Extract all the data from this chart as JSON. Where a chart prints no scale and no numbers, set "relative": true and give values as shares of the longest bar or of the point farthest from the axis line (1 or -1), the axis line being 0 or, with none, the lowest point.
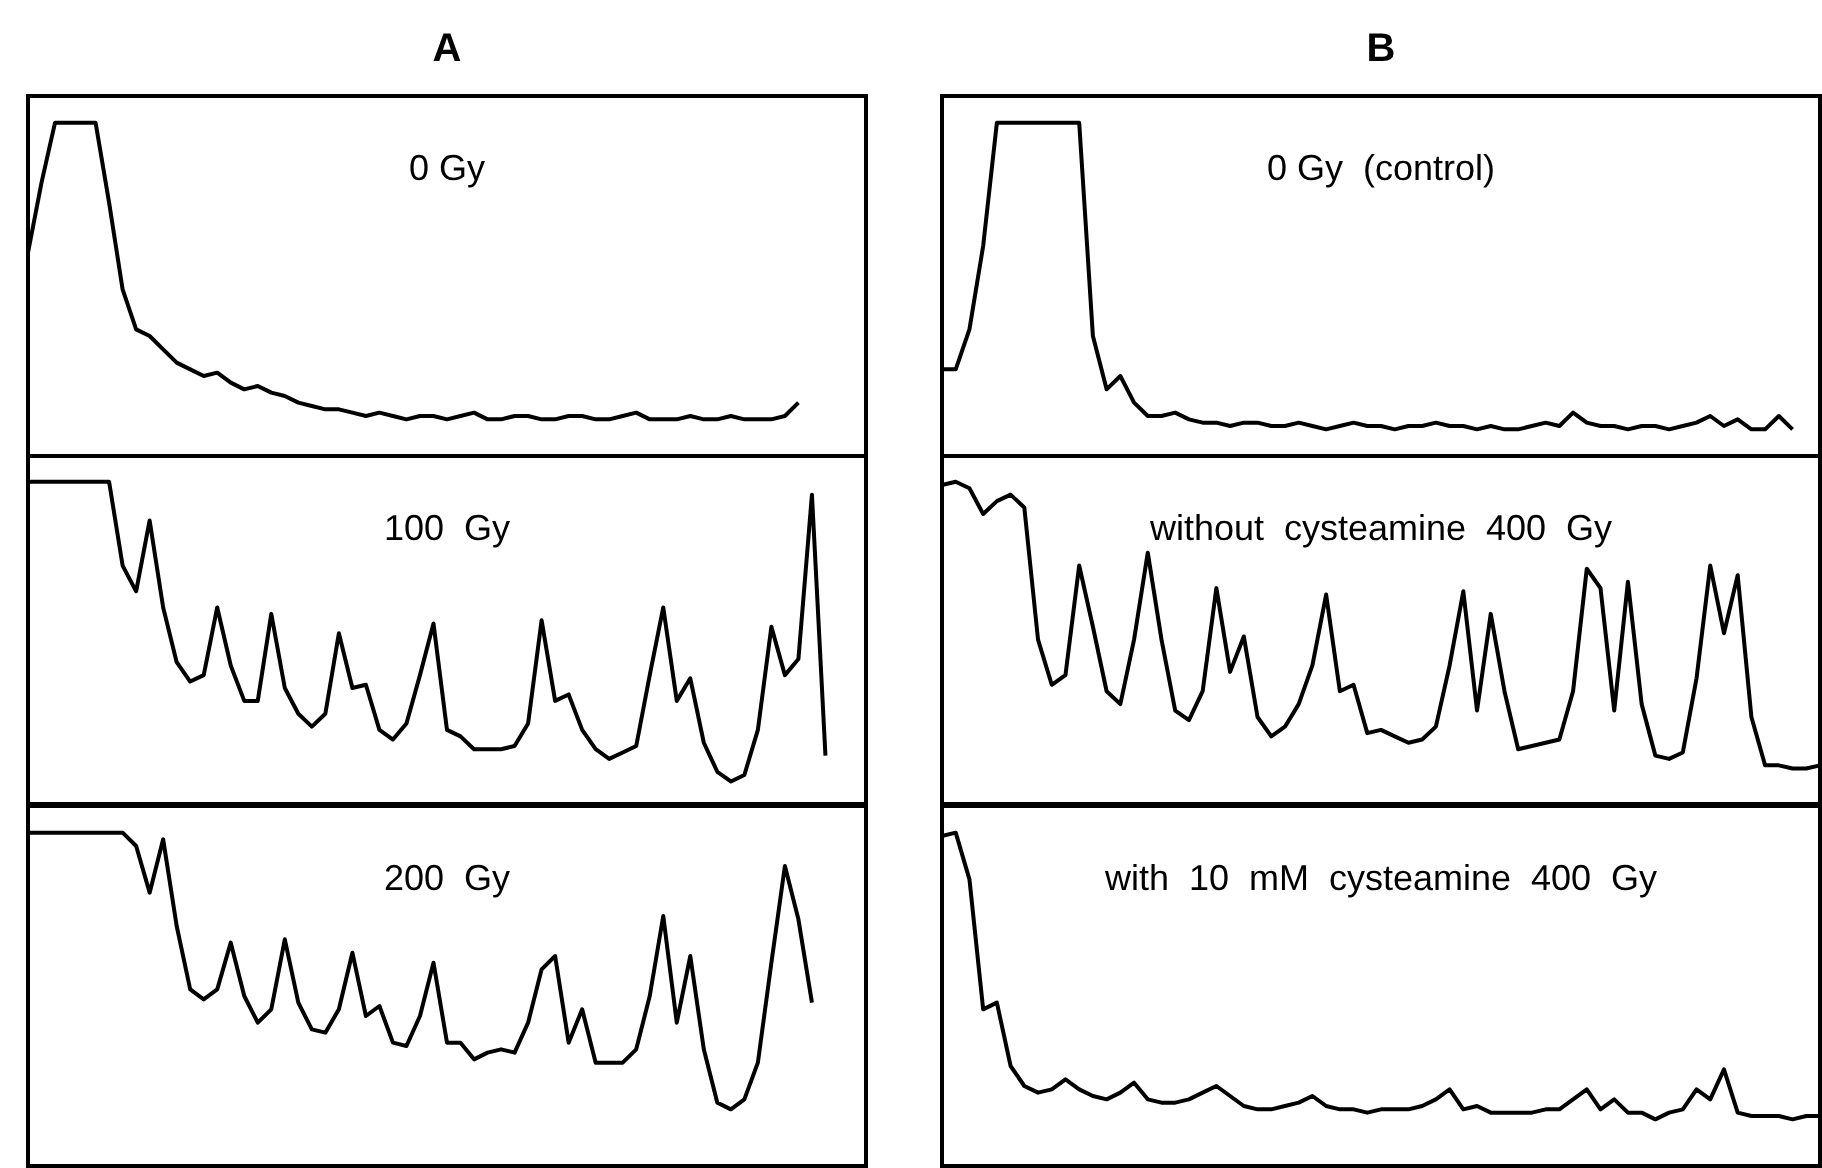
{
  "chart_data": [
    {
      "type": "line",
      "title": "A",
      "annotations": [
        "0 Gy"
      ],
      "relative": true,
      "color": "#000000",
      "categories": [
        null,
        null,
        null,
        null,
        null,
        null,
        null,
        null,
        null,
        null,
        null,
        null,
        null,
        null,
        null,
        null,
        null,
        null,
        null,
        null,
        null,
        null,
        null,
        null,
        null,
        null,
        null,
        null,
        null,
        null,
        null,
        null,
        null,
        null,
        null,
        null,
        null,
        null,
        null,
        null,
        null,
        null,
        null,
        null,
        null,
        null,
        null,
        null,
        null,
        null,
        null,
        null,
        null,
        null,
        null,
        null,
        null,
        null,
        null,
        null,
        null,
        null,
        null
      ],
      "values": [
        0.61,
        0.82,
        1,
        1,
        1,
        1,
        0.76,
        0.5,
        0.38,
        0.36,
        0.32,
        0.28,
        0.26,
        0.24,
        0.25,
        0.22,
        0.2,
        0.21,
        0.19,
        0.18,
        0.16,
        0.15,
        0.14,
        0.14,
        0.13,
        0.12,
        0.13,
        0.12,
        0.11,
        0.12,
        0.12,
        0.11,
        0.12,
        0.13,
        0.11,
        0.11,
        0.12,
        0.12,
        0.11,
        0.11,
        0.12,
        0.12,
        0.11,
        0.11,
        0.12,
        0.13,
        0.11,
        0.11,
        0.11,
        0.12,
        0.11,
        0.11,
        0.12,
        0.11,
        0.11,
        0.11,
        0.12,
        0.16,
        null,
        null,
        null,
        null,
        null
      ]
    },
    {
      "type": "line",
      "title": "B",
      "annotations": [
        "0 Gy  (control)"
      ],
      "relative": true,
      "color": "#000000",
      "categories": [
        null,
        null,
        null,
        null,
        null,
        null,
        null,
        null,
        null,
        null,
        null,
        null,
        null,
        null,
        null,
        null,
        null,
        null,
        null,
        null,
        null,
        null,
        null,
        null,
        null,
        null,
        null,
        null,
        null,
        null,
        null,
        null,
        null,
        null,
        null,
        null,
        null,
        null,
        null,
        null,
        null,
        null,
        null,
        null,
        null,
        null,
        null,
        null,
        null,
        null,
        null,
        null,
        null,
        null,
        null,
        null,
        null,
        null,
        null,
        null,
        null,
        null,
        null,
        null,
        null
      ],
      "values": [
        0.26,
        0.26,
        0.38,
        0.63,
        1,
        1,
        1,
        1,
        1,
        1,
        1,
        0.36,
        0.2,
        0.24,
        0.16,
        0.12,
        0.12,
        0.13,
        0.11,
        0.1,
        0.1,
        0.09,
        0.1,
        0.1,
        0.09,
        0.09,
        0.1,
        0.09,
        0.08,
        0.09,
        0.1,
        0.09,
        0.09,
        0.08,
        0.09,
        0.09,
        0.1,
        0.09,
        0.09,
        0.08,
        0.09,
        0.08,
        0.08,
        0.09,
        0.1,
        0.09,
        0.13,
        0.1,
        0.09,
        0.09,
        0.08,
        0.09,
        0.09,
        0.08,
        0.09,
        0.1,
        0.12,
        0.09,
        0.11,
        0.08,
        0.08,
        0.12,
        0.08,
        null,
        null
      ]
    },
    {
      "type": "line",
      "annotations": [
        "100  Gy"
      ],
      "relative": true,
      "color": "#000000",
      "categories": [
        null,
        null,
        null,
        null,
        null,
        null,
        null,
        null,
        null,
        null,
        null,
        null,
        null,
        null,
        null,
        null,
        null,
        null,
        null,
        null,
        null,
        null,
        null,
        null,
        null,
        null,
        null,
        null,
        null,
        null,
        null,
        null,
        null,
        null,
        null,
        null,
        null,
        null,
        null,
        null,
        null,
        null,
        null,
        null,
        null,
        null,
        null,
        null,
        null,
        null,
        null,
        null,
        null,
        null,
        null,
        null,
        null,
        null,
        null,
        null,
        null,
        null,
        null
      ],
      "values": [
        1,
        1,
        1,
        1,
        1,
        1,
        1,
        0.74,
        0.66,
        0.88,
        0.61,
        0.44,
        0.38,
        0.4,
        0.61,
        0.43,
        0.32,
        0.32,
        0.59,
        0.36,
        0.28,
        0.24,
        0.28,
        0.53,
        0.36,
        0.37,
        0.23,
        0.2,
        0.25,
        0.4,
        0.56,
        0.23,
        0.21,
        0.17,
        0.17,
        0.17,
        0.18,
        0.25,
        0.57,
        0.32,
        0.34,
        0.23,
        0.17,
        0.14,
        0.16,
        0.18,
        0.4,
        0.61,
        0.32,
        0.39,
        0.19,
        0.1,
        0.07,
        0.09,
        0.23,
        0.55,
        0.4,
        0.45,
        0.96,
        0.15,
        null,
        null,
        null
      ]
    },
    {
      "type": "line",
      "annotations": [
        "without  cysteamine  400  Gy"
      ],
      "relative": true,
      "color": "#000000",
      "categories": [
        null,
        null,
        null,
        null,
        null,
        null,
        null,
        null,
        null,
        null,
        null,
        null,
        null,
        null,
        null,
        null,
        null,
        null,
        null,
        null,
        null,
        null,
        null,
        null,
        null,
        null,
        null,
        null,
        null,
        null,
        null,
        null,
        null,
        null,
        null,
        null,
        null,
        null,
        null,
        null,
        null,
        null,
        null,
        null,
        null,
        null,
        null,
        null,
        null,
        null,
        null,
        null,
        null,
        null,
        null,
        null,
        null,
        null,
        null,
        null,
        null,
        null,
        null,
        null,
        null
      ],
      "values": [
        0.99,
        1,
        0.98,
        0.9,
        0.94,
        0.96,
        0.92,
        0.51,
        0.37,
        0.4,
        0.74,
        0.55,
        0.35,
        0.31,
        0.51,
        0.78,
        0.51,
        0.29,
        0.26,
        0.35,
        0.67,
        0.41,
        0.52,
        0.27,
        0.21,
        0.24,
        0.31,
        0.43,
        0.65,
        0.35,
        0.37,
        0.22,
        0.23,
        0.21,
        0.19,
        0.2,
        0.24,
        0.43,
        0.66,
        0.29,
        0.59,
        0.35,
        0.17,
        0.18,
        0.19,
        0.2,
        0.35,
        0.73,
        0.67,
        0.29,
        0.69,
        0.31,
        0.15,
        0.14,
        0.16,
        0.39,
        0.74,
        0.53,
        0.71,
        0.27,
        0.12,
        0.12,
        0.11,
        0.11,
        0.12
      ]
    },
    {
      "type": "line",
      "annotations": [
        "200  Gy"
      ],
      "relative": true,
      "color": "#000000",
      "categories": [
        null,
        null,
        null,
        null,
        null,
        null,
        null,
        null,
        null,
        null,
        null,
        null,
        null,
        null,
        null,
        null,
        null,
        null,
        null,
        null,
        null,
        null,
        null,
        null,
        null,
        null,
        null,
        null,
        null,
        null,
        null,
        null,
        null,
        null,
        null,
        null,
        null,
        null,
        null,
        null,
        null,
        null,
        null,
        null,
        null,
        null,
        null,
        null,
        null,
        null,
        null,
        null,
        null,
        null,
        null,
        null,
        null,
        null,
        null,
        null,
        null,
        null,
        null
      ],
      "values": [
        1,
        1,
        1,
        1,
        1,
        1,
        1,
        1,
        0.96,
        0.82,
        0.98,
        0.72,
        0.53,
        0.5,
        0.53,
        0.67,
        0.51,
        0.43,
        0.47,
        0.68,
        0.49,
        0.41,
        0.4,
        0.47,
        0.64,
        0.45,
        0.48,
        0.37,
        0.36,
        0.45,
        0.61,
        0.37,
        0.37,
        0.32,
        0.34,
        0.35,
        0.34,
        0.43,
        0.59,
        0.63,
        0.37,
        0.47,
        0.31,
        0.31,
        0.31,
        0.35,
        0.51,
        0.75,
        0.43,
        0.63,
        0.35,
        0.19,
        0.17,
        0.2,
        0.31,
        0.61,
        0.9,
        0.74,
        0.49,
        null,
        null,
        null,
        null
      ]
    },
    {
      "type": "line",
      "annotations": [
        "with  10  mM  cysteamine  400  Gy"
      ],
      "relative": true,
      "color": "#000000",
      "categories": [
        null,
        null,
        null,
        null,
        null,
        null,
        null,
        null,
        null,
        null,
        null,
        null,
        null,
        null,
        null,
        null,
        null,
        null,
        null,
        null,
        null,
        null,
        null,
        null,
        null,
        null,
        null,
        null,
        null,
        null,
        null,
        null,
        null,
        null,
        null,
        null,
        null,
        null,
        null,
        null,
        null,
        null,
        null,
        null,
        null,
        null,
        null,
        null,
        null,
        null,
        null,
        null,
        null,
        null,
        null,
        null,
        null,
        null,
        null,
        null,
        null,
        null,
        null,
        null,
        null
      ],
      "values": [
        0.99,
        1,
        0.86,
        0.47,
        0.49,
        0.3,
        0.24,
        0.22,
        0.23,
        0.26,
        0.23,
        0.21,
        0.2,
        0.22,
        0.25,
        0.2,
        0.19,
        0.19,
        0.2,
        0.22,
        0.24,
        0.21,
        0.18,
        0.17,
        0.17,
        0.18,
        0.19,
        0.21,
        0.18,
        0.17,
        0.17,
        0.16,
        0.17,
        0.17,
        0.17,
        0.18,
        0.2,
        0.23,
        0.17,
        0.18,
        0.16,
        0.16,
        0.16,
        0.16,
        0.17,
        0.17,
        0.2,
        0.23,
        0.17,
        0.2,
        0.16,
        0.16,
        0.14,
        0.16,
        0.17,
        0.23,
        0.2,
        0.29,
        0.16,
        0.15,
        0.15,
        0.15,
        0.14,
        0.15,
        0.15
      ]
    }
  ]
}
